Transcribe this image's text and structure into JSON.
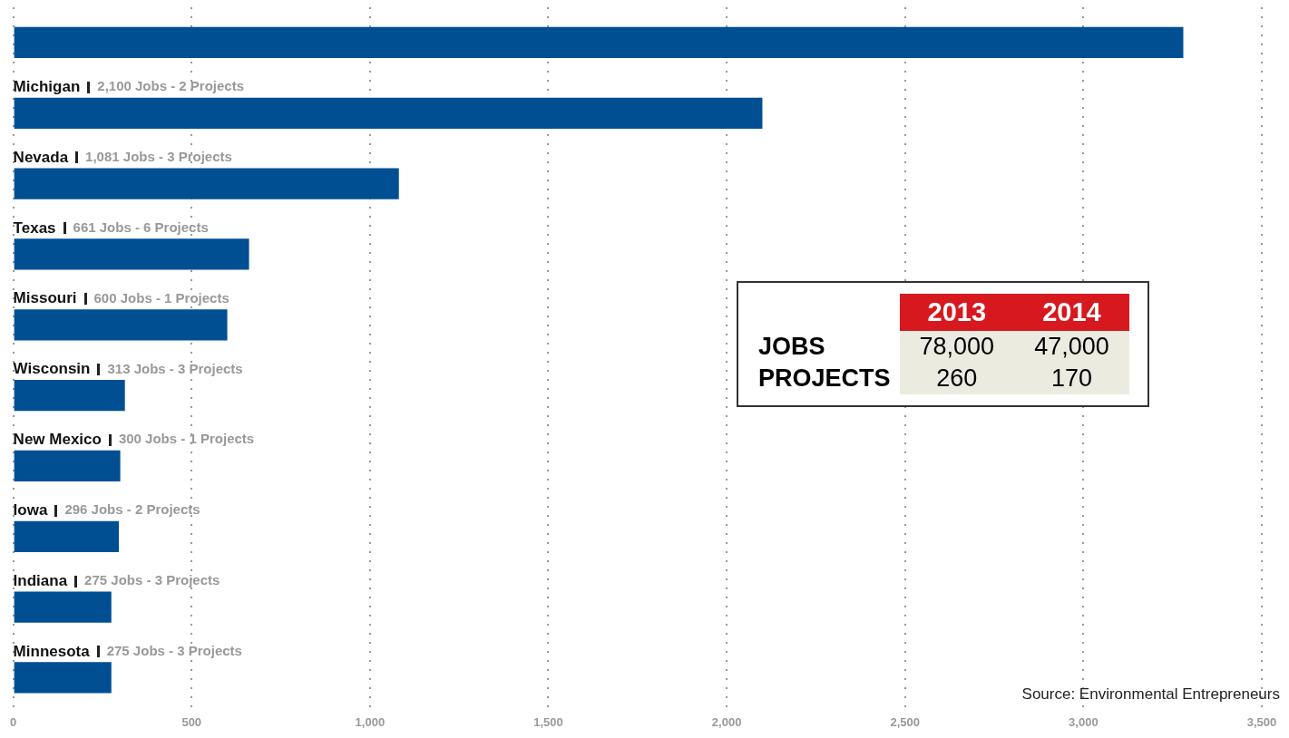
{
  "chart_data": [
    {
      "type": "bar",
      "orientation": "horizontal",
      "categories": [
        null,
        "Michigan",
        "Nevada",
        "Texas",
        "Missouri",
        "Wisconsin",
        "New Mexico",
        "Iowa",
        "Indiana",
        "Minnesota"
      ],
      "values": [
        3280,
        2100,
        1081,
        661,
        600,
        313,
        300,
        296,
        275,
        275
      ],
      "value_labels": [
        null,
        "2,100 Jobs - 2 Projects",
        "1,081 Jobs - 3 Projects",
        "661 Jobs - 6 Projects",
        "600 Jobs - 1 Projects",
        "313 Jobs - 3 Projects",
        "300 Jobs - 1 Projects",
        "296 Jobs - 2 Projects",
        "275 Jobs - 3 Projects",
        "275 Jobs - 3 Projects"
      ],
      "color": "#004f93",
      "xlim": [
        0,
        3500
      ],
      "xticks": [
        0,
        500,
        {
          "value": 1000,
          "label": "1,000"
        },
        {
          "value": 1500,
          "label": "1,500"
        },
        {
          "value": 2000,
          "label": "2,000"
        },
        {
          "value": 2500,
          "label": "2,500"
        },
        {
          "value": 3000,
          "label": "3,000"
        },
        {
          "value": 3500,
          "label": "3,500"
        }
      ],
      "grid": "x",
      "legend": false,
      "annotations": [
        "Source: Environmental Entrepreneurs"
      ]
    },
    {
      "type": "other",
      "categories": [
        "2013",
        "2014"
      ],
      "y_categories": [
        "JOBS",
        "PROJECTS"
      ],
      "cell_labels": [
        [
          "78,000",
          "47,000"
        ],
        [
          "260",
          "170"
        ]
      ]
    }
  ]
}
